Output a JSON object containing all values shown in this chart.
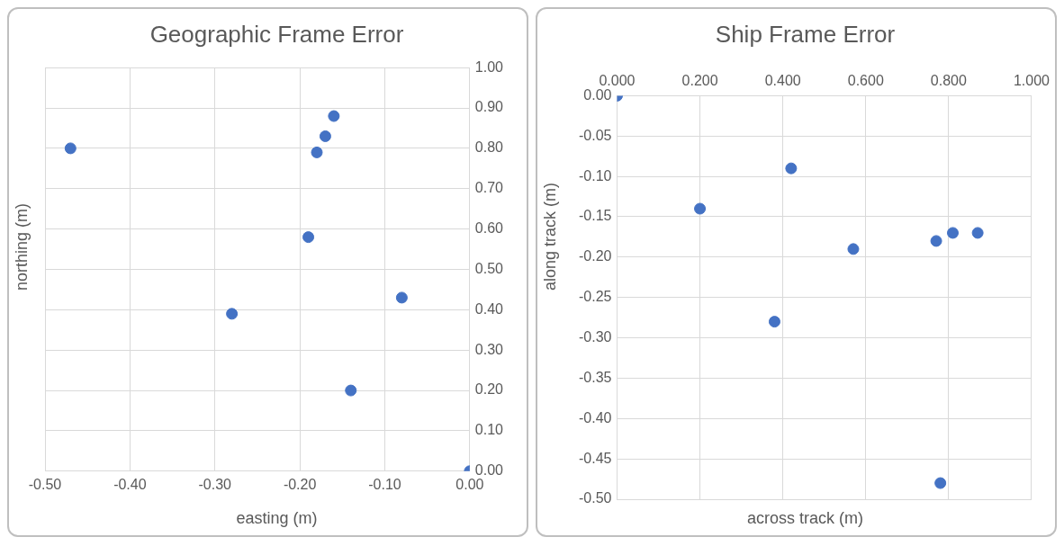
{
  "chart_data": [
    {
      "type": "scatter",
      "title": "Geographic Frame Error",
      "xlabel": "easting (m)",
      "ylabel": "northing (m)",
      "x": [
        -0.47,
        -0.16,
        -0.17,
        -0.18,
        -0.19,
        -0.28,
        -0.08,
        -0.14,
        0.0
      ],
      "values": [
        0.8,
        0.88,
        0.83,
        0.79,
        0.58,
        0.39,
        0.43,
        0.2,
        0.0
      ],
      "color": "#4472c4",
      "marker": "circle",
      "xlim": [
        -0.5,
        0
      ],
      "ylim": [
        0,
        1
      ],
      "xticks": [
        {
          "value": -0.5,
          "label": "-0.50"
        },
        {
          "value": -0.4,
          "label": "-0.40"
        },
        {
          "value": -0.3,
          "label": "-0.30"
        },
        {
          "value": -0.2,
          "label": "-0.20"
        },
        {
          "value": -0.1,
          "label": "-0.10"
        },
        {
          "value": 0,
          "label": "0.00"
        }
      ],
      "yticks": [
        {
          "value": 0,
          "label": "0.00"
        },
        {
          "value": 0.1,
          "label": "0.10"
        },
        {
          "value": 0.2,
          "label": "0.20"
        },
        {
          "value": 0.3,
          "label": "0.30"
        },
        {
          "value": 0.4,
          "label": "0.40"
        },
        {
          "value": 0.5,
          "label": "0.50"
        },
        {
          "value": 0.6,
          "label": "0.60"
        },
        {
          "value": 0.7,
          "label": "0.70"
        },
        {
          "value": 0.8,
          "label": "0.80"
        },
        {
          "value": 0.9,
          "label": "0.90"
        },
        {
          "value": 1,
          "label": "1.00"
        }
      ],
      "grid": true,
      "legend": false
    },
    {
      "type": "scatter",
      "title": "Ship Frame Error",
      "xlabel": "across track (m)",
      "ylabel": "along track (m)",
      "x": [
        0.0,
        0.2,
        0.42,
        0.38,
        0.57,
        0.77,
        0.81,
        0.87,
        0.78
      ],
      "values": [
        0.0,
        -0.14,
        -0.09,
        -0.28,
        -0.19,
        -0.18,
        -0.17,
        -0.17,
        -0.48
      ],
      "color": "#4472c4",
      "marker": "circle",
      "xlim": [
        0,
        1
      ],
      "ylim": [
        -0.5,
        0
      ],
      "xticks": [
        {
          "value": 0,
          "label": "0.000"
        },
        {
          "value": 0.2,
          "label": "0.200"
        },
        {
          "value": 0.4,
          "label": "0.400"
        },
        {
          "value": 0.6,
          "label": "0.600"
        },
        {
          "value": 0.8,
          "label": "0.800"
        },
        {
          "value": 1,
          "label": "1.000"
        }
      ],
      "yticks": [
        {
          "value": -0.5,
          "label": "-0.50"
        },
        {
          "value": -0.45,
          "label": "-0.45"
        },
        {
          "value": -0.4,
          "label": "-0.40"
        },
        {
          "value": -0.35,
          "label": "-0.35"
        },
        {
          "value": -0.3,
          "label": "-0.30"
        },
        {
          "value": -0.25,
          "label": "-0.25"
        },
        {
          "value": -0.2,
          "label": "-0.20"
        },
        {
          "value": -0.15,
          "label": "-0.15"
        },
        {
          "value": -0.1,
          "label": "-0.10"
        },
        {
          "value": -0.05,
          "label": "-0.05"
        },
        {
          "value": 0,
          "label": "0.00"
        }
      ],
      "grid": true,
      "legend": false
    }
  ]
}
